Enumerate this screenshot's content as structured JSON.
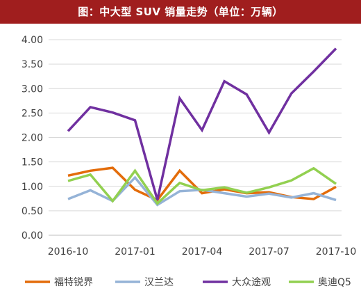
{
  "chart_data": {
    "type": "line",
    "title": "图：中大型 SUV 销量走势（单位：万辆）",
    "x": [
      "2016-10",
      "2016-11",
      "2016-12",
      "2017-01",
      "2017-02",
      "2017-03",
      "2017-04",
      "2017-05",
      "2017-06",
      "2017-07",
      "2017-08",
      "2017-09",
      "2017-10"
    ],
    "xticks": [
      "2016-10",
      "2017-01",
      "2017-04",
      "2017-07",
      "2017-10"
    ],
    "yticks": [
      "0.00",
      "0.50",
      "1.00",
      "1.50",
      "2.00",
      "2.50",
      "3.00",
      "3.50",
      "4.00"
    ],
    "ylim": [
      0,
      4.0
    ],
    "grid": true,
    "legend_position": "bottom",
    "series": [
      {
        "name": "福特锐界",
        "color": "#e36c0a",
        "values": [
          1.22,
          1.32,
          1.38,
          0.93,
          0.72,
          1.32,
          0.86,
          0.94,
          0.86,
          0.88,
          0.78,
          0.74,
          0.99
        ]
      },
      {
        "name": "汉兰达",
        "color": "#95b3d7",
        "values": [
          0.74,
          0.92,
          0.7,
          1.18,
          0.62,
          0.9,
          0.93,
          0.86,
          0.79,
          0.85,
          0.77,
          0.86,
          0.72
        ]
      },
      {
        "name": "大众途观",
        "color": "#7030a0",
        "values": [
          2.13,
          2.62,
          2.51,
          2.35,
          0.72,
          2.8,
          2.15,
          3.15,
          2.88,
          2.1,
          2.9,
          3.35,
          3.82
        ]
      },
      {
        "name": "奥迪Q5",
        "color": "#92d050",
        "values": [
          1.11,
          1.24,
          0.7,
          1.32,
          0.65,
          1.07,
          0.92,
          0.98,
          0.87,
          0.98,
          1.12,
          1.37,
          1.05
        ]
      }
    ]
  }
}
